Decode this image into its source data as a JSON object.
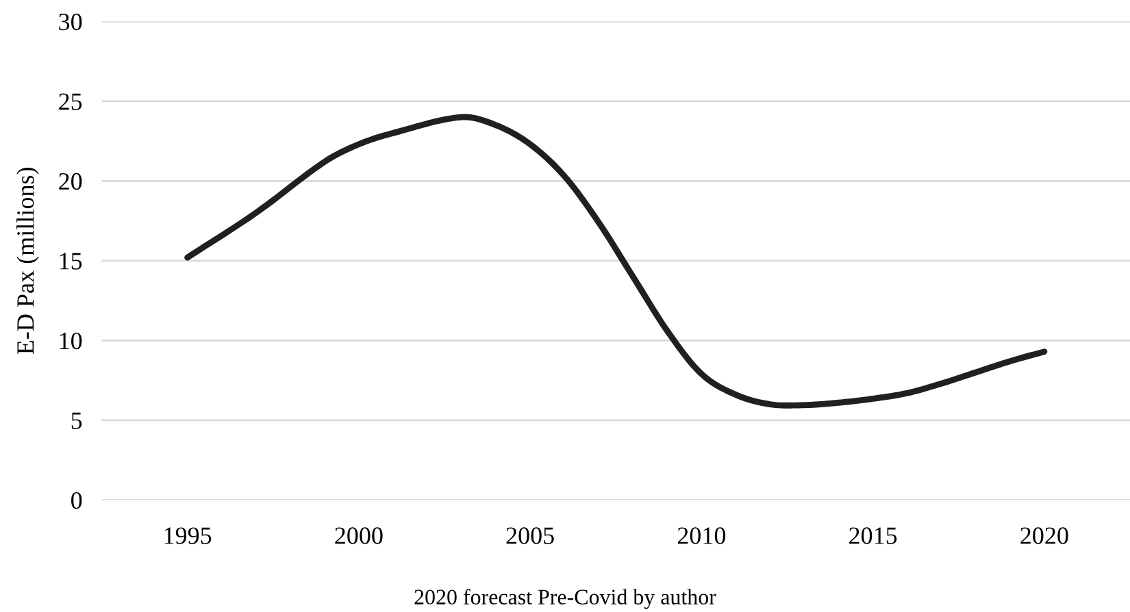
{
  "chart_data": {
    "type": "line",
    "ylabel": "E-D Pax (millions)",
    "annotations": [
      "2020 forecast Pre-Covid by author"
    ],
    "x": [
      1995,
      1997,
      1999,
      2000,
      2001,
      2003,
      2004,
      2005,
      2006,
      2007,
      2008,
      2009,
      2010,
      2011,
      2012,
      2013,
      2014,
      2015,
      2016,
      2017,
      2018,
      2019,
      2020
    ],
    "series": [
      {
        "color": "#231f20",
        "values": [
          15.2,
          18.0,
          21.2,
          22.3,
          23.0,
          24.0,
          23.5,
          22.3,
          20.3,
          17.4,
          14.0,
          10.6,
          7.9,
          6.6,
          6.0,
          5.95,
          6.1,
          6.35,
          6.7,
          7.3,
          8.0,
          8.7,
          9.3
        ]
      }
    ],
    "xlim": [
      1992.5,
      2022.5
    ],
    "xticks": [
      1995,
      2000,
      2005,
      2010,
      2015,
      2020
    ],
    "ylim": [
      0,
      30
    ],
    "yticks": [
      0,
      5,
      10,
      15,
      20,
      25,
      30
    ],
    "grid": "y",
    "legend": false,
    "marker": "none",
    "line_style": "solid"
  }
}
